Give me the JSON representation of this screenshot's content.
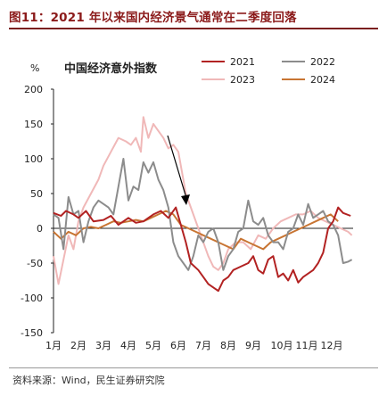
{
  "figure_title": "图11：2021 年以来国内经济景气通常在二季度回落",
  "source": "资料来源：Wind，民生证券研究院",
  "chart_data": {
    "type": "line",
    "title": "中国经济意外指数",
    "ylabel": "%",
    "ylim": [
      -150,
      200
    ],
    "yticks": [
      -150,
      -100,
      -50,
      0,
      50,
      100,
      150,
      200
    ],
    "xlim": [
      0,
      12
    ],
    "xticks": [
      "1月",
      "2月",
      "3月",
      "4月",
      "5月",
      "6月",
      "7月",
      "8月",
      "9月",
      "10月",
      "11月",
      "12月"
    ],
    "legend_placement": "top-right",
    "annotation": "downward-arrow",
    "series": [
      {
        "name": "2021",
        "color": "#b22222",
        "x": [
          0,
          0.3,
          0.5,
          0.8,
          1.0,
          1.3,
          1.6,
          2.0,
          2.3,
          2.6,
          3.0,
          3.3,
          3.6,
          4.0,
          4.3,
          4.6,
          4.9,
          5.1,
          5.3,
          5.5,
          5.8,
          6.0,
          6.2,
          6.4,
          6.6,
          6.8,
          7.0,
          7.2,
          7.5,
          7.8,
          8.0,
          8.2,
          8.4,
          8.6,
          8.8,
          9.0,
          9.2,
          9.4,
          9.6,
          9.8,
          10.0,
          10.2,
          10.4,
          10.6,
          10.8,
          11.0,
          11.2,
          11.4,
          11.6,
          11.9
        ],
        "values": [
          22,
          18,
          25,
          20,
          15,
          25,
          10,
          12,
          18,
          5,
          15,
          8,
          10,
          20,
          25,
          15,
          30,
          5,
          -20,
          -50,
          -60,
          -70,
          -80,
          -85,
          -90,
          -75,
          -70,
          -60,
          -55,
          -50,
          -40,
          -60,
          -65,
          -45,
          -40,
          -70,
          -65,
          -75,
          -60,
          -78,
          -70,
          -65,
          -60,
          -50,
          -35,
          0,
          10,
          30,
          22,
          18
        ]
      },
      {
        "name": "2022",
        "color": "#8c8c8c",
        "x": [
          0,
          0.2,
          0.4,
          0.6,
          0.8,
          1.0,
          1.2,
          1.4,
          1.6,
          1.8,
          2.0,
          2.2,
          2.4,
          2.6,
          2.8,
          3.0,
          3.2,
          3.4,
          3.6,
          3.8,
          4.0,
          4.2,
          4.4,
          4.6,
          4.8,
          5.0,
          5.2,
          5.4,
          5.6,
          5.8,
          6.0,
          6.2,
          6.4,
          6.6,
          6.8,
          7.0,
          7.2,
          7.4,
          7.6,
          7.8,
          8.0,
          8.2,
          8.4,
          8.6,
          8.8,
          9.0,
          9.2,
          9.4,
          9.6,
          9.8,
          10.0,
          10.2,
          10.4,
          10.6,
          10.8,
          11.0,
          11.2,
          11.4,
          11.6,
          11.8,
          11.95
        ],
        "values": [
          20,
          15,
          -30,
          45,
          20,
          25,
          -20,
          10,
          30,
          40,
          35,
          30,
          20,
          60,
          100,
          40,
          60,
          55,
          95,
          80,
          95,
          70,
          55,
          30,
          -20,
          -40,
          -50,
          -60,
          -40,
          -10,
          -20,
          -5,
          0,
          -20,
          -60,
          -40,
          -30,
          -5,
          0,
          40,
          10,
          5,
          15,
          -10,
          -20,
          -20,
          -30,
          -5,
          0,
          20,
          5,
          35,
          15,
          20,
          25,
          10,
          5,
          -10,
          -50,
          -48,
          -45
        ]
      },
      {
        "name": "2023",
        "color": "#f0b8b8",
        "x": [
          0,
          0.2,
          0.4,
          0.6,
          0.8,
          1.0,
          1.2,
          1.5,
          1.8,
          2.0,
          2.3,
          2.6,
          2.9,
          3.1,
          3.3,
          3.5,
          3.6,
          3.8,
          4.0,
          4.2,
          4.4,
          4.6,
          4.8,
          5.0,
          5.3,
          5.6,
          5.9,
          6.2,
          6.4,
          6.6,
          6.8,
          7.0,
          7.3,
          7.6,
          7.9,
          8.2,
          8.5,
          8.8,
          9.1,
          9.4,
          9.7,
          10.0,
          10.3,
          10.6,
          10.9,
          11.2,
          11.5,
          11.8,
          11.95
        ],
        "values": [
          -40,
          -80,
          -45,
          -10,
          -30,
          10,
          30,
          50,
          70,
          90,
          110,
          130,
          125,
          120,
          130,
          110,
          160,
          130,
          150,
          140,
          130,
          115,
          120,
          110,
          50,
          20,
          -10,
          -40,
          -55,
          -60,
          -50,
          -30,
          -20,
          -20,
          -30,
          -10,
          -15,
          0,
          10,
          15,
          20,
          20,
          25,
          15,
          10,
          5,
          0,
          -5,
          -10
        ]
      },
      {
        "name": "2024",
        "color": "#c87533",
        "x": [
          0,
          0.3,
          0.6,
          0.9,
          1.2,
          1.5,
          1.8,
          2.1,
          2.4,
          2.7,
          3.0,
          3.3,
          3.6,
          3.9,
          4.2,
          4.5,
          4.8,
          5.1,
          5.4,
          5.7,
          6.0,
          6.3,
          6.6,
          6.9,
          7.2,
          7.5,
          7.8,
          8.1,
          8.4,
          8.7,
          9.0,
          9.3,
          9.6,
          9.9,
          10.2,
          10.5,
          10.8,
          11.1,
          11.4
        ],
        "values": [
          -5,
          -15,
          -5,
          -10,
          0,
          2,
          0,
          5,
          10,
          8,
          10,
          12,
          10,
          15,
          20,
          25,
          20,
          5,
          0,
          -5,
          -10,
          -15,
          -20,
          -25,
          -30,
          -15,
          -20,
          -25,
          -30,
          -20,
          -15,
          -10,
          -5,
          0,
          5,
          10,
          15,
          20,
          10
        ]
      }
    ]
  }
}
